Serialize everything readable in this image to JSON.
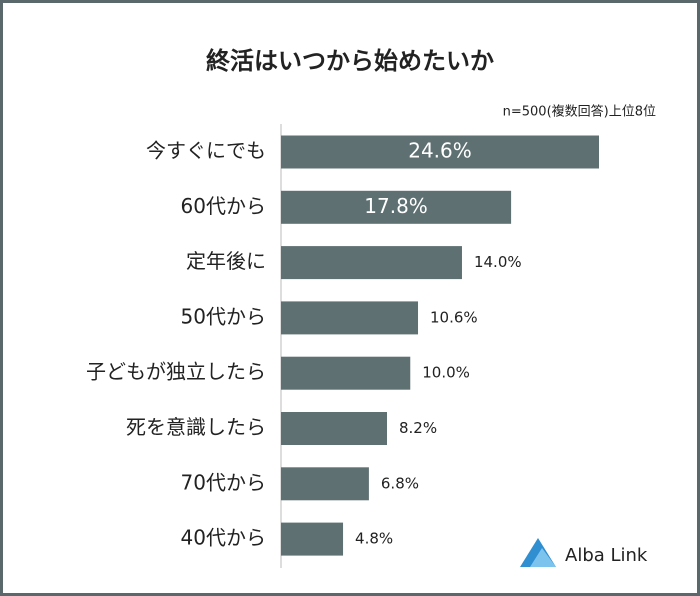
{
  "chart_data": {
    "type": "bar",
    "orientation": "horizontal",
    "title": "終活はいつから始めたいか",
    "subtitle": "n=500(複数回答)上位8位",
    "categories": [
      "今すぐにでも",
      "60代から",
      "定年後に",
      "50代から",
      "子どもが独立したら",
      "死を意識したら",
      "70代から",
      "40代から"
    ],
    "values": [
      24.6,
      17.8,
      14.0,
      10.6,
      10.0,
      8.2,
      6.8,
      4.8
    ],
    "value_labels": [
      "24.6%",
      "17.8%",
      "14.0%",
      "10.6%",
      "10.0%",
      "8.2%",
      "6.8%",
      "4.8%"
    ],
    "color": "#5f7073",
    "logo": "Alba Link"
  }
}
